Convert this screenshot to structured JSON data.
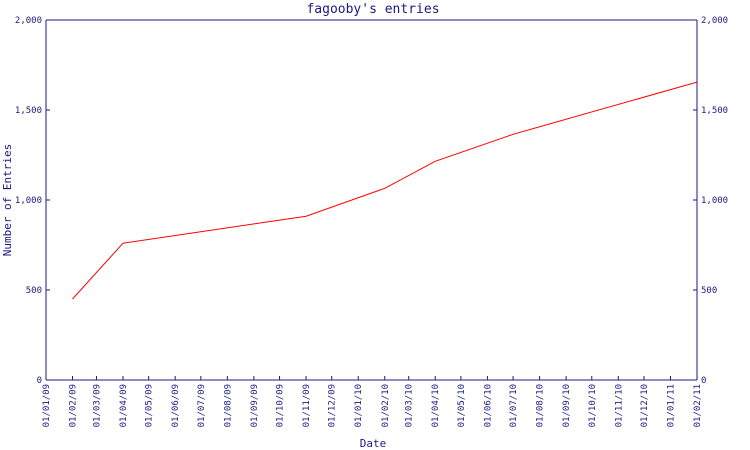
{
  "chart_data": {
    "type": "line",
    "title": "fagooby's entries",
    "xlabel": "Date",
    "ylabel": "Number of Entries",
    "ylim": [
      0,
      2000
    ],
    "y_ticks": [
      {
        "value": 0,
        "label": "0"
      },
      {
        "value": 500,
        "label": "500"
      },
      {
        "value": 1000,
        "label": "1,000"
      },
      {
        "value": 1500,
        "label": "1,500"
      },
      {
        "value": 2000,
        "label": "2,000"
      }
    ],
    "x_ticks": [
      "01/01/09",
      "01/02/09",
      "01/03/09",
      "01/04/09",
      "01/05/09",
      "01/06/09",
      "01/07/09",
      "01/08/09",
      "01/09/09",
      "01/10/09",
      "01/11/09",
      "01/12/09",
      "01/01/10",
      "01/02/10",
      "01/03/10",
      "01/04/10",
      "01/05/10",
      "01/06/10",
      "01/07/10",
      "01/08/10",
      "01/09/10",
      "01/10/10",
      "01/11/10",
      "01/12/10",
      "01/01/11",
      "01/02/11"
    ],
    "grid": false,
    "series": [
      {
        "color": "#ff0000",
        "points": [
          {
            "x": "2009-02-01",
            "y": 450
          },
          {
            "x": "2009-04-01",
            "y": 760
          },
          {
            "x": "2009-11-01",
            "y": 910
          },
          {
            "x": "2010-02-01",
            "y": 1065
          },
          {
            "x": "2010-04-01",
            "y": 1215
          },
          {
            "x": "2010-07-01",
            "y": 1365
          },
          {
            "x": "2011-02-01",
            "y": 1655
          }
        ]
      }
    ]
  }
}
